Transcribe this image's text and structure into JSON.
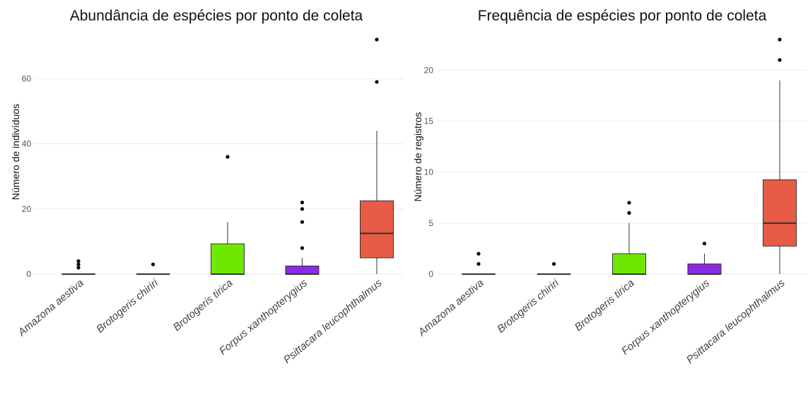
{
  "chart_data": [
    {
      "type": "box",
      "title": "Abundância de espécies por ponto de coleta",
      "xlabel": "",
      "ylabel": "Número de indivíduos",
      "ylim": [
        0,
        72
      ],
      "yticks": [
        0,
        20,
        40,
        60
      ],
      "grid": true,
      "categories": [
        "Amazona aestiva",
        "Brotogeris chiriri",
        "Brotogeris tirica",
        "Forpus xanthopterygius",
        "Psittacara leucophthalmus"
      ],
      "colors": [
        "#ffffff",
        "#ffffff",
        "#6fe800",
        "#8b2be2",
        "#e85c45"
      ],
      "boxes": [
        {
          "min": 0,
          "q1": 0,
          "median": 0,
          "q3": 0,
          "max": 0,
          "outliers": [
            2,
            3,
            4
          ]
        },
        {
          "min": 0,
          "q1": 0,
          "median": 0,
          "q3": 0,
          "max": 0,
          "outliers": [
            3
          ]
        },
        {
          "min": 0,
          "q1": 0,
          "median": 0,
          "q3": 9.3,
          "max": 16,
          "outliers": [
            36
          ]
        },
        {
          "min": 0,
          "q1": 0,
          "median": 0,
          "q3": 2.5,
          "max": 5,
          "outliers": [
            8,
            16,
            20,
            22
          ]
        },
        {
          "min": 0,
          "q1": 5,
          "median": 12.5,
          "q3": 22.5,
          "max": 44,
          "outliers": [
            59,
            72
          ]
        }
      ]
    },
    {
      "type": "box",
      "title": "Frequência de espécies por ponto de coleta",
      "xlabel": "",
      "ylabel": "Número de registros",
      "ylim": [
        0,
        23
      ],
      "yticks": [
        0,
        5,
        10,
        15,
        20
      ],
      "grid": true,
      "categories": [
        "Amazona aestiva",
        "Brotogeris chiriri",
        "Brotogeris tirica",
        "Forpus xanthopterygius",
        "Psittacara leucophthalmus"
      ],
      "colors": [
        "#ffffff",
        "#ffffff",
        "#6fe800",
        "#8b2be2",
        "#e85c45"
      ],
      "boxes": [
        {
          "min": 0,
          "q1": 0,
          "median": 0,
          "q3": 0,
          "max": 0,
          "outliers": [
            1,
            2
          ]
        },
        {
          "min": 0,
          "q1": 0,
          "median": 0,
          "q3": 0,
          "max": 0,
          "outliers": [
            1
          ]
        },
        {
          "min": 0,
          "q1": 0,
          "median": 0,
          "q3": 2,
          "max": 5,
          "outliers": [
            6,
            7
          ]
        },
        {
          "min": 0,
          "q1": 0,
          "median": 0,
          "q3": 1,
          "max": 2,
          "outliers": [
            3
          ]
        },
        {
          "min": 0,
          "q1": 2.75,
          "median": 5,
          "q3": 9.25,
          "max": 19,
          "outliers": [
            21,
            23
          ]
        }
      ]
    }
  ]
}
